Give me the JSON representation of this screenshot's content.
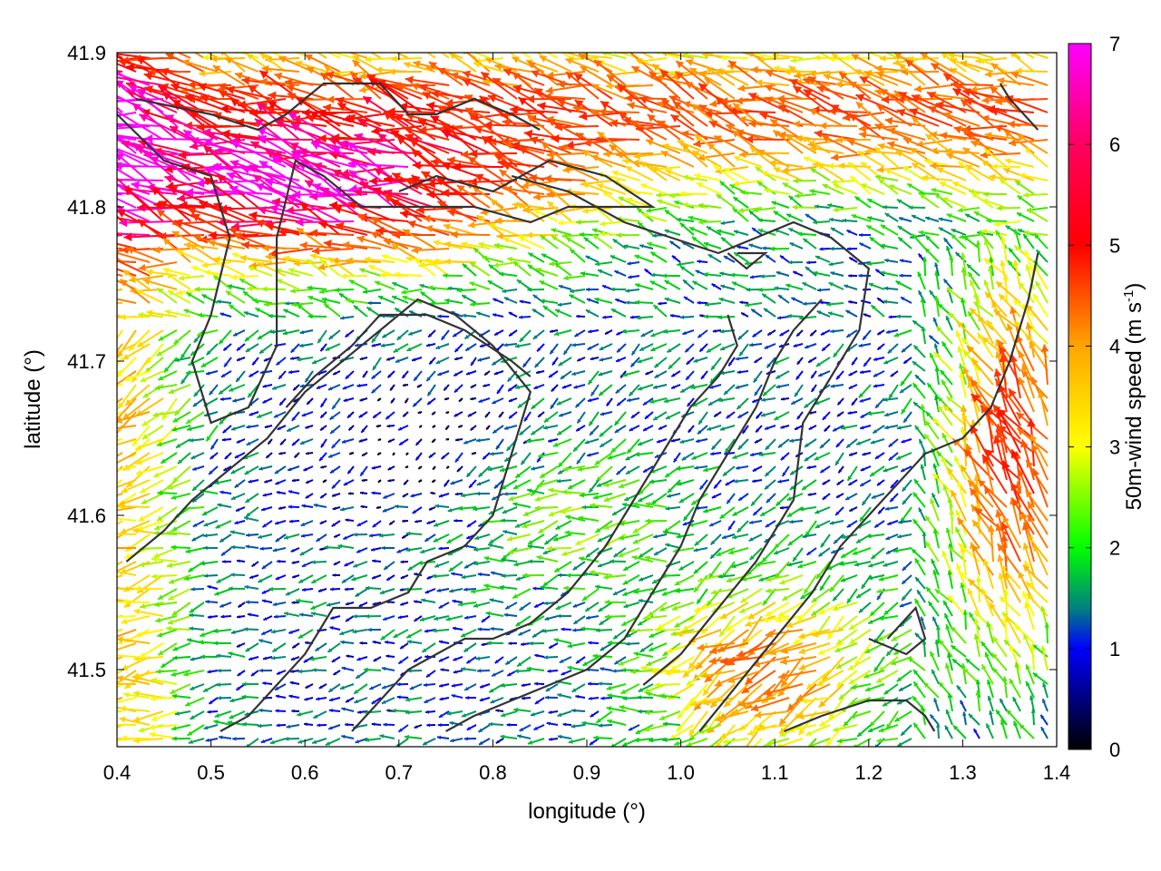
{
  "chart_data": {
    "type": "vector-field",
    "xlabel": "longitude (°)",
    "ylabel": "latitude (°)",
    "xlim": [
      0.4,
      1.4
    ],
    "ylim": [
      41.45,
      41.9
    ],
    "xticks": [
      "0.4",
      "0.5",
      "0.6",
      "0.7",
      "0.8",
      "0.9",
      "1.0",
      "1.1",
      "1.2",
      "1.3",
      "1.4"
    ],
    "yticks": [
      "41.5",
      "41.6",
      "41.7",
      "41.8",
      "41.9"
    ],
    "xtick_values": [
      0.4,
      0.5,
      0.6,
      0.7,
      0.8,
      0.9,
      1.0,
      1.1,
      1.2,
      1.3,
      1.4
    ],
    "ytick_values": [
      41.5,
      41.6,
      41.7,
      41.8,
      41.9
    ],
    "colorbar": {
      "label": "50m-wind speed (m s-1)",
      "label_main": "50m-wind speed (m s",
      "label_sup": "-1",
      "label_end": ")",
      "range": [
        0,
        7
      ],
      "ticks": [
        "0",
        "1",
        "2",
        "3",
        "4",
        "5",
        "6",
        "7"
      ],
      "tick_values": [
        0,
        1,
        2,
        3,
        4,
        5,
        6,
        7
      ],
      "colors": [
        "#000000",
        "#0000ff",
        "#00ff00",
        "#ffff00",
        "#ffa500",
        "#ff0000",
        "#ff00ff"
      ]
    },
    "contour_color": "#333333",
    "grid": false,
    "contours": [
      [
        [
          0.42,
          41.87
        ],
        [
          0.5,
          41.86
        ],
        [
          0.55,
          41.85
        ],
        [
          0.58,
          41.86
        ],
        [
          0.62,
          41.88
        ],
        [
          0.68,
          41.88
        ],
        [
          0.71,
          41.86
        ],
        [
          0.74,
          41.86
        ],
        [
          0.78,
          41.87
        ],
        [
          0.82,
          41.86
        ],
        [
          0.85,
          41.85
        ]
      ],
      [
        [
          0.4,
          41.86
        ],
        [
          0.45,
          41.83
        ],
        [
          0.5,
          41.82
        ],
        [
          0.52,
          41.78
        ],
        [
          0.5,
          41.73
        ],
        [
          0.48,
          41.7
        ],
        [
          0.5,
          41.66
        ],
        [
          0.54,
          41.67
        ],
        [
          0.57,
          41.71
        ],
        [
          0.57,
          41.78
        ],
        [
          0.59,
          41.83
        ],
        [
          0.62,
          41.82
        ],
        [
          0.66,
          41.8
        ],
        [
          0.72,
          41.8
        ],
        [
          0.78,
          41.8
        ],
        [
          0.84,
          41.79
        ],
        [
          0.88,
          41.8
        ],
        [
          0.94,
          41.8
        ],
        [
          0.97,
          41.8
        ],
        [
          0.92,
          41.82
        ],
        [
          0.86,
          41.83
        ],
        [
          0.8,
          41.81
        ],
        [
          0.74,
          41.82
        ],
        [
          0.7,
          41.81
        ]
      ],
      [
        [
          0.82,
          41.82
        ],
        [
          0.88,
          41.81
        ],
        [
          0.94,
          41.79
        ],
        [
          0.99,
          41.78
        ],
        [
          1.04,
          41.77
        ],
        [
          1.08,
          41.78
        ],
        [
          1.12,
          41.79
        ],
        [
          1.16,
          41.78
        ],
        [
          1.2,
          41.76
        ],
        [
          1.19,
          41.72
        ],
        [
          1.16,
          41.69
        ],
        [
          1.13,
          41.66
        ],
        [
          1.12,
          41.61
        ],
        [
          1.08,
          41.57
        ],
        [
          1.04,
          41.54
        ],
        [
          1.0,
          41.51
        ],
        [
          0.96,
          41.49
        ]
      ],
      [
        [
          0.58,
          41.67
        ],
        [
          0.61,
          41.69
        ],
        [
          0.65,
          41.71
        ],
        [
          0.68,
          41.73
        ],
        [
          0.73,
          41.73
        ],
        [
          0.77,
          41.72
        ],
        [
          0.82,
          41.7
        ],
        [
          0.84,
          41.69
        ]
      ],
      [
        [
          0.41,
          41.57
        ],
        [
          0.45,
          41.59
        ],
        [
          0.48,
          41.61
        ],
        [
          0.52,
          41.63
        ],
        [
          0.56,
          41.65
        ],
        [
          0.6,
          41.68
        ],
        [
          0.64,
          41.7
        ],
        [
          0.68,
          41.72
        ],
        [
          0.72,
          41.74
        ],
        [
          0.76,
          41.73
        ],
        [
          0.8,
          41.71
        ],
        [
          0.84,
          41.68
        ],
        [
          0.82,
          41.64
        ],
        [
          0.8,
          41.6
        ],
        [
          0.77,
          41.58
        ],
        [
          0.73,
          41.57
        ],
        [
          0.71,
          41.55
        ],
        [
          0.67,
          41.54
        ],
        [
          0.63,
          41.54
        ],
        [
          0.6,
          41.51
        ],
        [
          0.57,
          41.49
        ],
        [
          0.54,
          41.47
        ],
        [
          0.51,
          41.46
        ]
      ],
      [
        [
          0.65,
          41.46
        ],
        [
          0.68,
          41.48
        ],
        [
          0.71,
          41.5
        ],
        [
          0.74,
          41.51
        ],
        [
          0.77,
          41.52
        ],
        [
          0.8,
          41.52
        ],
        [
          0.84,
          41.53
        ],
        [
          0.88,
          41.55
        ],
        [
          0.92,
          41.58
        ],
        [
          0.95,
          41.61
        ],
        [
          0.98,
          41.64
        ],
        [
          1.01,
          41.67
        ],
        [
          1.04,
          41.69
        ],
        [
          1.06,
          41.71
        ],
        [
          1.05,
          41.73
        ]
      ],
      [
        [
          0.75,
          41.46
        ],
        [
          0.78,
          41.47
        ],
        [
          0.82,
          41.48
        ],
        [
          0.86,
          41.49
        ],
        [
          0.9,
          41.5
        ],
        [
          0.94,
          41.52
        ],
        [
          0.97,
          41.55
        ],
        [
          1.0,
          41.58
        ],
        [
          1.02,
          41.61
        ],
        [
          1.05,
          41.64
        ],
        [
          1.08,
          41.67
        ],
        [
          1.1,
          41.7
        ],
        [
          1.12,
          41.72
        ],
        [
          1.15,
          41.74
        ]
      ],
      [
        [
          1.02,
          41.46
        ],
        [
          1.06,
          41.49
        ],
        [
          1.1,
          41.52
        ],
        [
          1.14,
          41.55
        ],
        [
          1.17,
          41.58
        ],
        [
          1.2,
          41.6
        ],
        [
          1.23,
          41.62
        ],
        [
          1.26,
          41.64
        ],
        [
          1.3,
          41.65
        ],
        [
          1.33,
          41.67
        ],
        [
          1.35,
          41.7
        ],
        [
          1.37,
          41.74
        ],
        [
          1.38,
          41.77
        ]
      ],
      [
        [
          1.11,
          41.46
        ],
        [
          1.15,
          41.47
        ],
        [
          1.2,
          41.48
        ],
        [
          1.24,
          41.48
        ],
        [
          1.26,
          41.47
        ],
        [
          1.27,
          41.46
        ]
      ],
      [
        [
          1.2,
          41.52
        ],
        [
          1.24,
          41.51
        ],
        [
          1.26,
          41.52
        ],
        [
          1.25,
          41.54
        ],
        [
          1.22,
          41.52
        ]
      ],
      [
        [
          1.34,
          41.88
        ],
        [
          1.35,
          41.87
        ],
        [
          1.38,
          41.85
        ]
      ],
      [
        [
          1.05,
          41.77
        ],
        [
          1.07,
          41.76
        ],
        [
          1.09,
          41.77
        ],
        [
          1.06,
          41.77
        ]
      ]
    ]
  }
}
